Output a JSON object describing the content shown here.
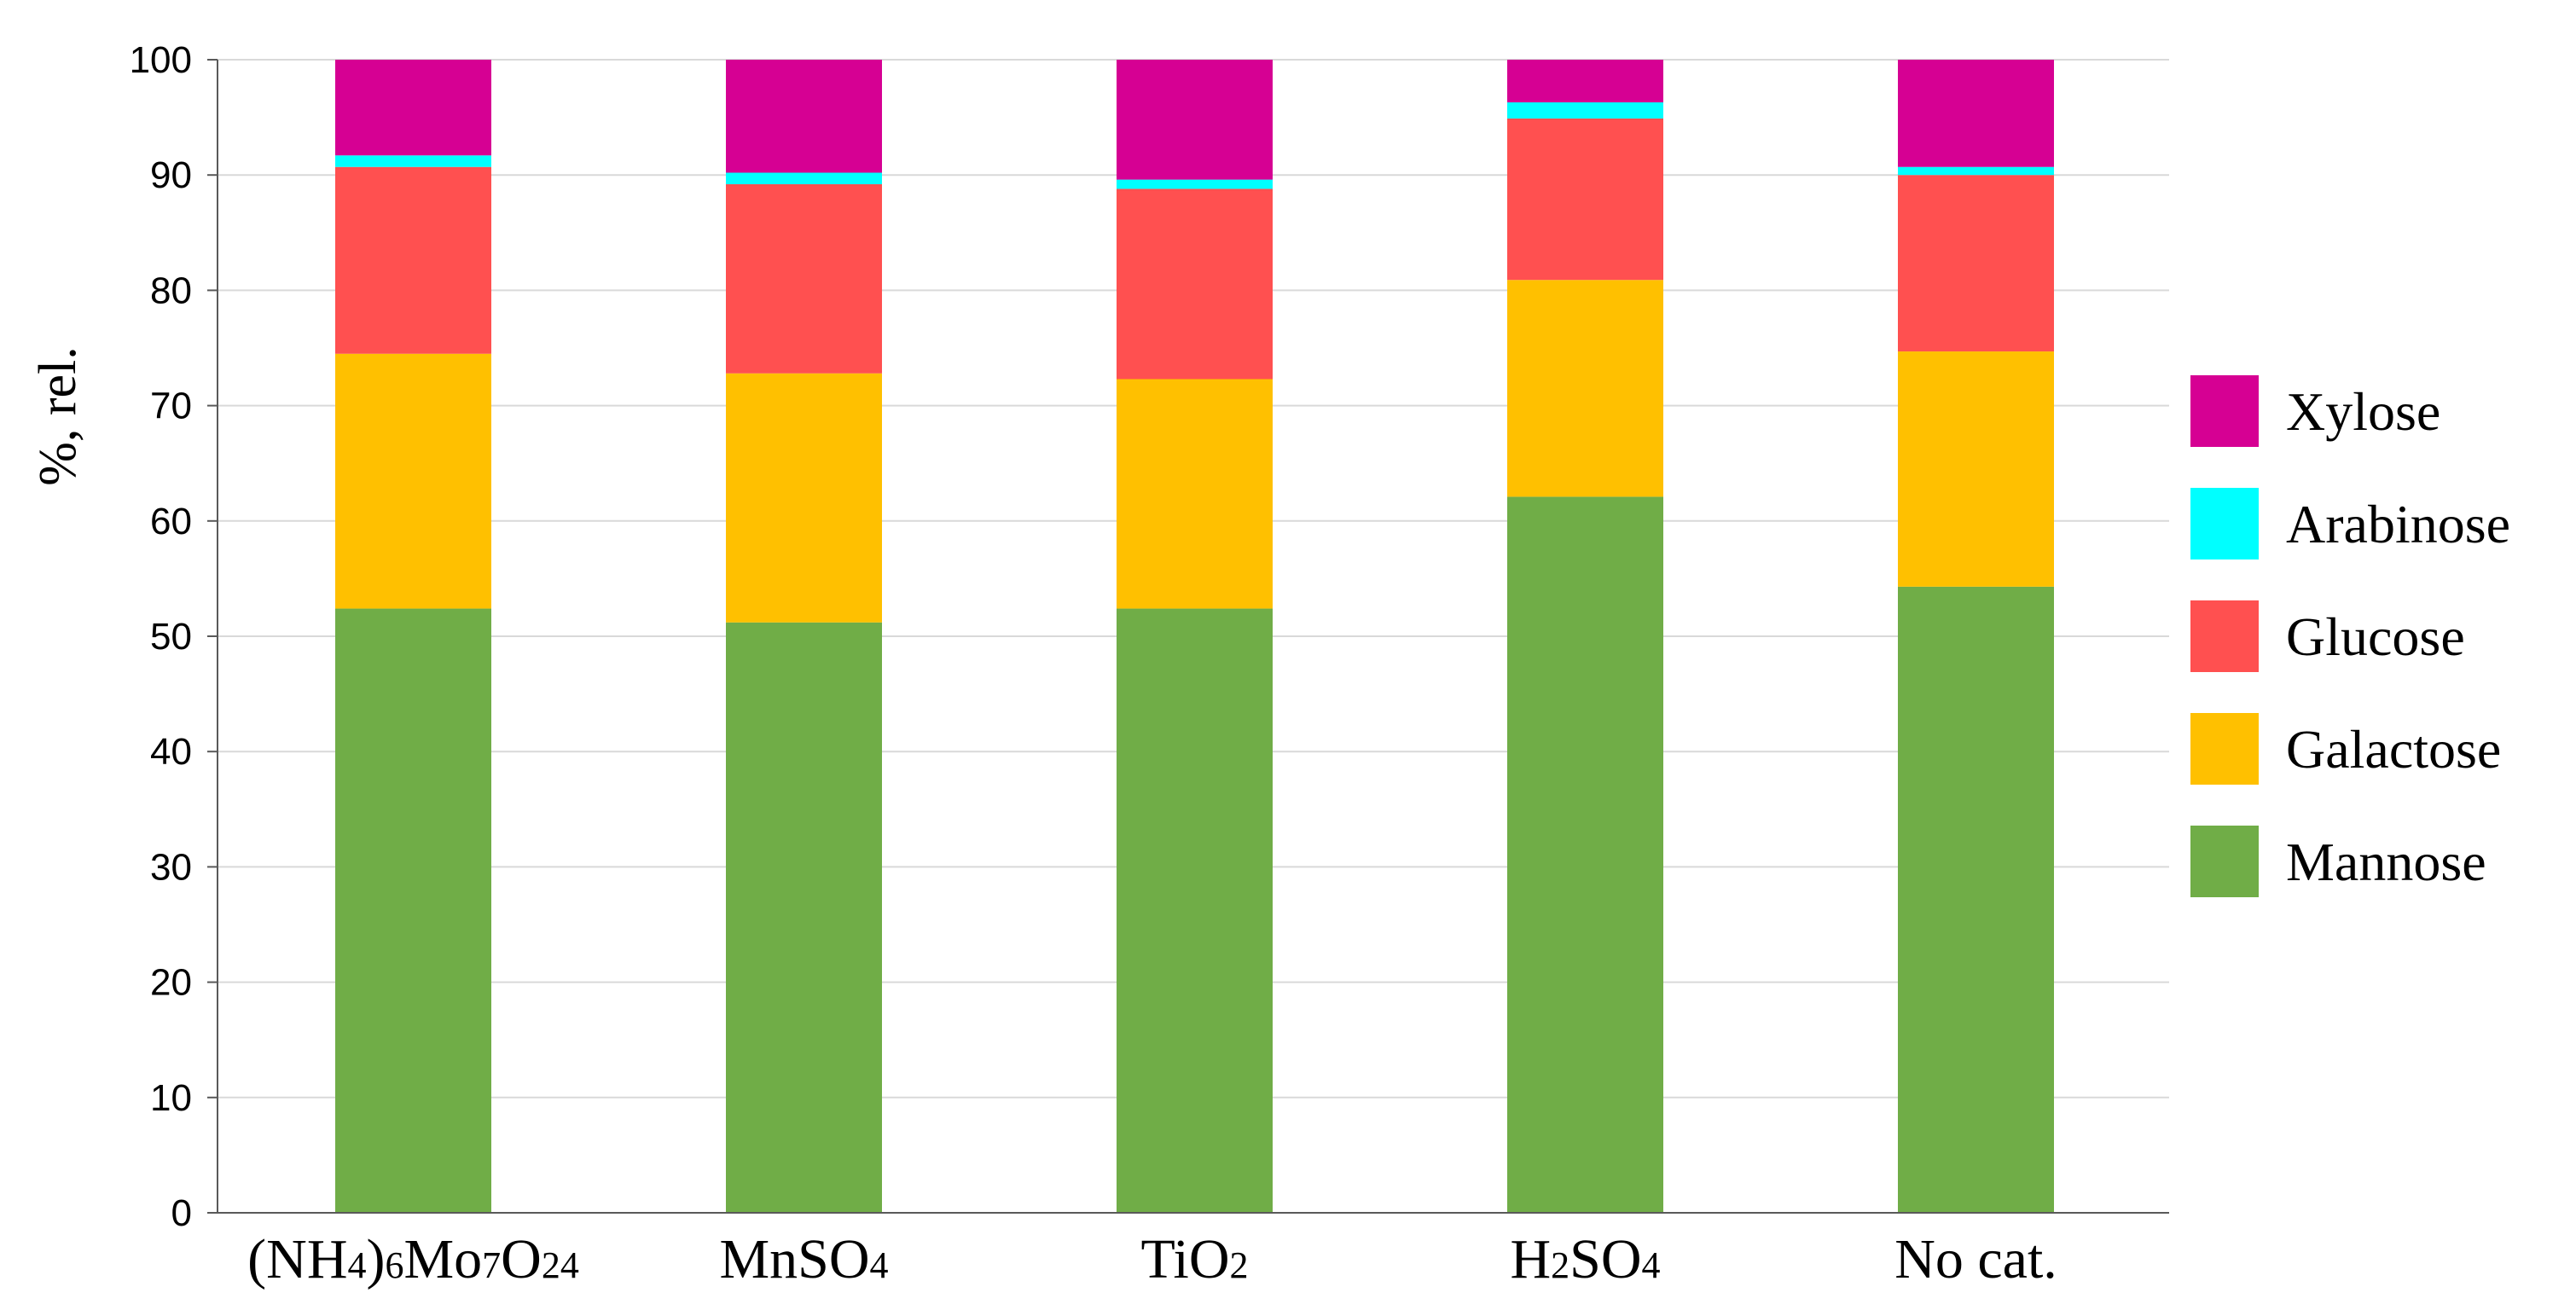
{
  "chart_data": {
    "type": "bar",
    "stacked": true,
    "categories": [
      {
        "parts": [
          [
            "(NH",
            "n"
          ],
          [
            "4",
            "s"
          ],
          [
            ")",
            "n"
          ],
          [
            "6",
            "s"
          ],
          [
            "Mo",
            "n"
          ],
          [
            "7",
            "s"
          ],
          [
            "O",
            "n"
          ],
          [
            "24",
            "s"
          ]
        ]
      },
      {
        "parts": [
          [
            "MnSO",
            "n"
          ],
          [
            "4",
            "s"
          ]
        ]
      },
      {
        "parts": [
          [
            "TiO",
            "n"
          ],
          [
            "2",
            "s"
          ]
        ]
      },
      {
        "parts": [
          [
            "H",
            "n"
          ],
          [
            "2",
            "s"
          ],
          [
            "SO",
            "n"
          ],
          [
            "4",
            "s"
          ]
        ]
      },
      {
        "parts": [
          [
            "No cat.",
            "n"
          ]
        ]
      }
    ],
    "series": [
      {
        "name": "Mannose",
        "color": "#70ad47",
        "values": [
          52.4,
          51.2,
          52.4,
          62.1,
          54.3
        ]
      },
      {
        "name": "Galactose",
        "color": "#ffc000",
        "values": [
          22.1,
          21.6,
          19.9,
          18.8,
          20.4
        ]
      },
      {
        "name": "Glucose",
        "color": "#ff5050",
        "values": [
          16.2,
          16.4,
          16.5,
          14.0,
          15.3
        ]
      },
      {
        "name": "Arabinose",
        "color": "#00ffff",
        "values": [
          1.0,
          1.0,
          0.8,
          1.4,
          0.7
        ]
      },
      {
        "name": "Xylose",
        "color": "#d60093",
        "values": [
          8.3,
          9.8,
          10.4,
          3.7,
          9.3
        ]
      }
    ],
    "ylabel": "%, rel.",
    "ylim": [
      0,
      100
    ],
    "yticks": [
      "0",
      "10",
      "20",
      "30",
      "40",
      "50",
      "60",
      "70",
      "80",
      "90",
      "100"
    ],
    "grid": true,
    "legend_position": "right",
    "legend_order": [
      "Xylose",
      "Arabinose",
      "Glucose",
      "Galactose",
      "Mannose"
    ]
  }
}
